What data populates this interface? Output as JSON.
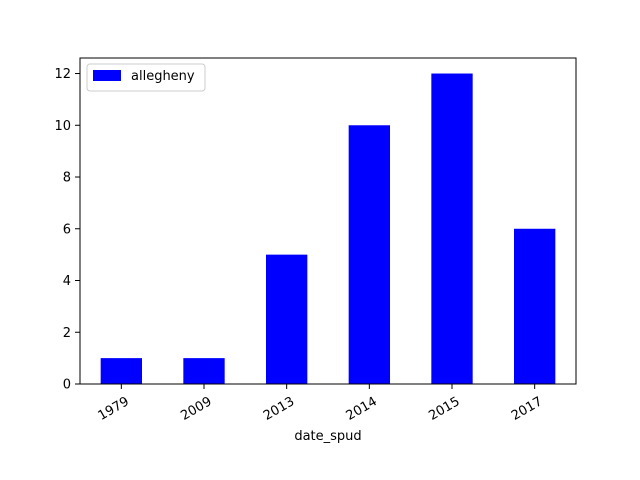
{
  "chart_data": {
    "type": "bar",
    "categories": [
      "1979",
      "2009",
      "2013",
      "2014",
      "2015",
      "2017"
    ],
    "series": [
      {
        "name": "allegheny",
        "values": [
          1,
          1,
          5,
          10,
          12,
          6
        ],
        "color": "#0000ff"
      }
    ],
    "xlabel": "date_spud",
    "ylabel": "",
    "ylim": [
      0,
      12.6
    ],
    "yticks": [
      0,
      2,
      4,
      6,
      8,
      10,
      12
    ],
    "grid": false,
    "legend": "top-left"
  }
}
